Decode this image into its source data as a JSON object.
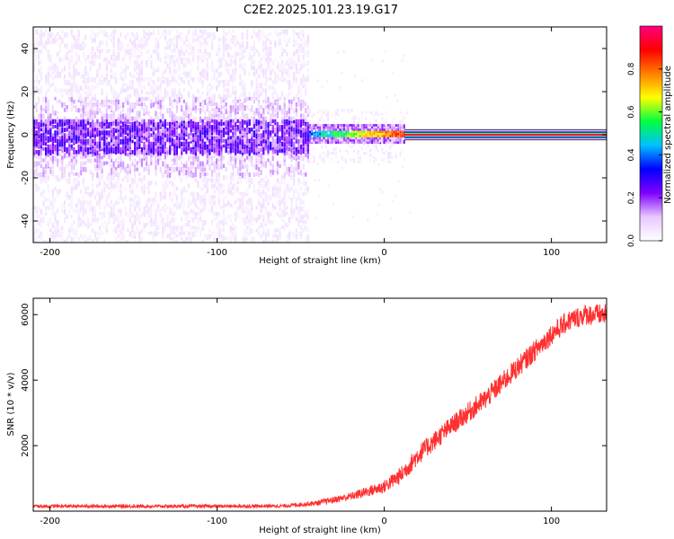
{
  "figure": {
    "title": "C2E2.2025.101.23.19.G17"
  },
  "chart_data": [
    {
      "type": "heatmap",
      "title": "C2E2.2025.101.23.19.G17",
      "xlabel": "Height of straight line (km)",
      "ylabel": "Frequency (Hz)",
      "xlim": [
        -210,
        133
      ],
      "ylim": [
        -50,
        50
      ],
      "xticks": [
        -200,
        -100,
        0,
        100
      ],
      "xtick_labels": [
        "-200",
        "-100",
        "0",
        "100"
      ],
      "yticks": [
        40,
        20,
        0,
        -20,
        -40
      ],
      "ytick_labels": [
        "40",
        "20",
        "0",
        "-20",
        "-40"
      ],
      "grid": false,
      "colorbar": {
        "label": "Normalized spectral amplitude",
        "range": [
          0,
          1
        ],
        "ticks": [
          0.0,
          0.2,
          0.4,
          0.6,
          0.8
        ],
        "tick_labels": [
          "0.0",
          "0.2",
          "0.4",
          "0.6",
          "0.8"
        ],
        "colors": [
          "#ffffff",
          "#e8c8ff",
          "#8000ff",
          "#0000ff",
          "#00c0ff",
          "#00ff40",
          "#ffff00",
          "#ff8000",
          "#ff0000",
          "#ff0080"
        ]
      },
      "description_regions": [
        {
          "x_range": [
            -210,
            -45
          ],
          "freq_center": 0,
          "core_halfwidth": 8,
          "scatter_halfwidth": 50,
          "level": "low-noise"
        },
        {
          "x_range": [
            -45,
            12
          ],
          "freq_center": 1,
          "core_halfwidth": 3,
          "level": "rising"
        },
        {
          "x_range": [
            12,
            133
          ],
          "freq_center": 0,
          "core_halfwidth": 1,
          "level": "max"
        }
      ]
    },
    {
      "type": "line",
      "xlabel": "Height of straight line (km)",
      "ylabel": "SNR (10 * v/v)",
      "xlim": [
        -210,
        133
      ],
      "ylim": [
        0,
        6500
      ],
      "xticks": [
        -200,
        -100,
        0,
        100
      ],
      "xtick_labels": [
        "-200",
        "-100",
        "0",
        "100"
      ],
      "yticks": [
        2000,
        4000,
        6000
      ],
      "ytick_labels": [
        "2000",
        "4000",
        "6000"
      ],
      "grid": false,
      "color": "#ff3030",
      "x": [
        -210,
        -180,
        -150,
        -120,
        -90,
        -60,
        -40,
        -20,
        0,
        10,
        20,
        40,
        60,
        80,
        100,
        110,
        120,
        133
      ],
      "y": [
        150,
        150,
        150,
        150,
        150,
        160,
        250,
        450,
        750,
        1100,
        1700,
        2600,
        3400,
        4400,
        5400,
        5800,
        6000,
        6000
      ],
      "noise_amplitude": [
        50,
        50,
        50,
        50,
        50,
        50,
        80,
        120,
        200,
        260,
        300,
        300,
        320,
        320,
        320,
        320,
        320,
        320
      ]
    }
  ]
}
